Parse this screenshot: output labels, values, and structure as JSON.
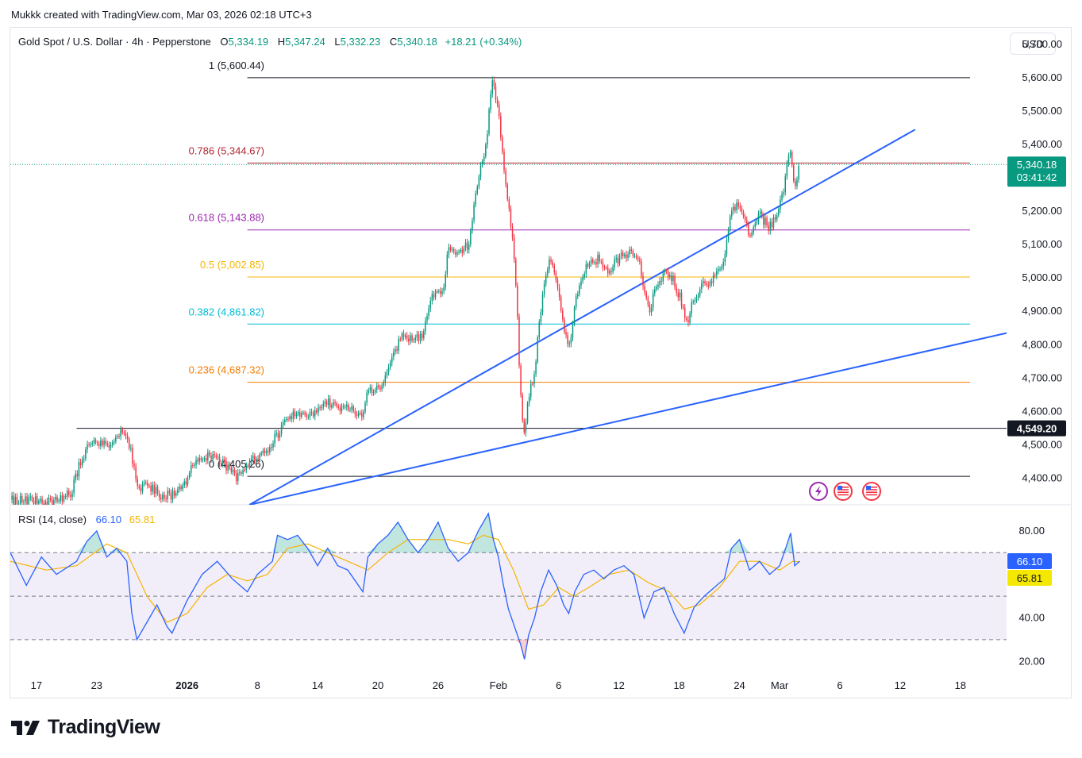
{
  "caption": "Mukkk created with TradingView.com, Mar 03, 2026 02:18 UTC+3",
  "header": {
    "symbol": "Gold Spot / U.S. Dollar · 4h · Pepperstone",
    "o_label": "O",
    "o": "5,334.19",
    "h_label": "H",
    "h": "5,347.24",
    "l_label": "L",
    "l": "5,332.23",
    "c_label": "C",
    "c": "5,340.18",
    "change": "+18.21 (+0.34%)"
  },
  "currency": "USD",
  "rsi_legend": {
    "name": "RSI (14, close)",
    "rsi": "66.10",
    "ma": "65.81"
  },
  "brand": "TradingView",
  "colors": {
    "up": "#089981",
    "down": "#f23645",
    "trend": "#2962ff",
    "rsi": "#2962ff",
    "rsi_ma": "#f5b400"
  },
  "chart_data": {
    "type": "candlestick",
    "title": "Gold Spot / U.S. Dollar · 4h · Pepperstone",
    "x_ticks": [
      {
        "label": "17",
        "day": -15
      },
      {
        "label": "23",
        "day": -9
      },
      {
        "label": "2026",
        "day": 0
      },
      {
        "label": "8",
        "day": 7
      },
      {
        "label": "14",
        "day": 13
      },
      {
        "label": "20",
        "day": 19
      },
      {
        "label": "26",
        "day": 25
      },
      {
        "label": "Feb",
        "day": 31
      },
      {
        "label": "6",
        "day": 37
      },
      {
        "label": "12",
        "day": 43
      },
      {
        "label": "18",
        "day": 49
      },
      {
        "label": "24",
        "day": 55
      },
      {
        "label": "Mar",
        "day": 59
      },
      {
        "label": "6",
        "day": 65
      },
      {
        "label": "12",
        "day": 71
      },
      {
        "label": "18",
        "day": 77
      }
    ],
    "y_range": [
      4320,
      5750
    ],
    "y_ticks": [
      "5,700.00",
      "5,600.00",
      "5,500.00",
      "5,400.00",
      "5,300.00",
      "5,200.00",
      "5,100.00",
      "5,000.00",
      "4,900.00",
      "4,800.00",
      "4,700.00",
      "4,600.00",
      "4,500.00",
      "4,400.00"
    ],
    "y_tick_values": [
      5700,
      5600,
      5500,
      5400,
      5300,
      5200,
      5100,
      5000,
      4900,
      4800,
      4700,
      4600,
      4500,
      4400
    ],
    "x_range_days": [
      -17.6,
      81.6
    ],
    "price_path": [
      {
        "d": -17.6,
        "p": 4335
      },
      {
        "d": -13,
        "p": 4330
      },
      {
        "d": -11.5,
        "p": 4360
      },
      {
        "d": -10.5,
        "p": 4460
      },
      {
        "d": -9.5,
        "p": 4510
      },
      {
        "d": -8,
        "p": 4495
      },
      {
        "d": -6.4,
        "p": 4540
      },
      {
        "d": -5.5,
        "p": 4470
      },
      {
        "d": -5,
        "p": 4365
      },
      {
        "d": -4,
        "p": 4385
      },
      {
        "d": -2.5,
        "p": 4345
      },
      {
        "d": -1.5,
        "p": 4350
      },
      {
        "d": -0.5,
        "p": 4370
      },
      {
        "d": 0.5,
        "p": 4430
      },
      {
        "d": 2,
        "p": 4470
      },
      {
        "d": 3.5,
        "p": 4450
      },
      {
        "d": 5,
        "p": 4400
      },
      {
        "d": 6.5,
        "p": 4450
      },
      {
        "d": 8,
        "p": 4490
      },
      {
        "d": 9,
        "p": 4530
      },
      {
        "d": 10,
        "p": 4580
      },
      {
        "d": 11,
        "p": 4600
      },
      {
        "d": 12.5,
        "p": 4585
      },
      {
        "d": 14,
        "p": 4625
      },
      {
        "d": 16,
        "p": 4605
      },
      {
        "d": 17.5,
        "p": 4595
      },
      {
        "d": 18,
        "p": 4660
      },
      {
        "d": 19.5,
        "p": 4675
      },
      {
        "d": 20.5,
        "p": 4760
      },
      {
        "d": 21.5,
        "p": 4840
      },
      {
        "d": 22.5,
        "p": 4810
      },
      {
        "d": 23.5,
        "p": 4830
      },
      {
        "d": 24.5,
        "p": 4950
      },
      {
        "d": 25.5,
        "p": 4970
      },
      {
        "d": 26,
        "p": 5080
      },
      {
        "d": 27,
        "p": 5080
      },
      {
        "d": 28,
        "p": 5100
      },
      {
        "d": 28.8,
        "p": 5260
      },
      {
        "d": 29.8,
        "p": 5410
      },
      {
        "d": 30.3,
        "p": 5590
      },
      {
        "d": 31,
        "p": 5520
      },
      {
        "d": 31.6,
        "p": 5300
      },
      {
        "d": 32.3,
        "p": 5150
      },
      {
        "d": 32.8,
        "p": 4950
      },
      {
        "d": 33.1,
        "p": 4720
      },
      {
        "d": 33.5,
        "p": 4520
      },
      {
        "d": 34,
        "p": 4650
      },
      {
        "d": 34.6,
        "p": 4700
      },
      {
        "d": 35,
        "p": 4860
      },
      {
        "d": 35.6,
        "p": 4980
      },
      {
        "d": 36.2,
        "p": 5060
      },
      {
        "d": 36.8,
        "p": 4980
      },
      {
        "d": 37.5,
        "p": 4850
      },
      {
        "d": 38,
        "p": 4780
      },
      {
        "d": 38.6,
        "p": 4920
      },
      {
        "d": 39.2,
        "p": 5000
      },
      {
        "d": 40,
        "p": 5040
      },
      {
        "d": 41,
        "p": 5060
      },
      {
        "d": 42,
        "p": 5020
      },
      {
        "d": 43,
        "p": 5060
      },
      {
        "d": 44,
        "p": 5080
      },
      {
        "d": 45,
        "p": 5050
      },
      {
        "d": 46,
        "p": 4900
      },
      {
        "d": 47,
        "p": 5000
      },
      {
        "d": 48,
        "p": 5020
      },
      {
        "d": 49,
        "p": 4950
      },
      {
        "d": 49.8,
        "p": 4870
      },
      {
        "d": 50.5,
        "p": 4940
      },
      {
        "d": 51.5,
        "p": 4980
      },
      {
        "d": 52.5,
        "p": 5000
      },
      {
        "d": 53.5,
        "p": 5040
      },
      {
        "d": 54,
        "p": 5180
      },
      {
        "d": 55,
        "p": 5230
      },
      {
        "d": 56,
        "p": 5120
      },
      {
        "d": 57,
        "p": 5190
      },
      {
        "d": 58,
        "p": 5150
      },
      {
        "d": 59,
        "p": 5210
      },
      {
        "d": 59.6,
        "p": 5300
      },
      {
        "d": 60,
        "p": 5400
      },
      {
        "d": 60.4,
        "p": 5290
      },
      {
        "d": 60.6,
        "p": 5285
      },
      {
        "d": 61,
        "p": 5340
      }
    ],
    "last_candle_day": 61,
    "fib_levels": [
      {
        "ratio": "1",
        "price": 5600.44,
        "label": "1 (5,600.44)",
        "color": "#131722"
      },
      {
        "ratio": "0.786",
        "price": 5344.67,
        "label": "0.786 (5,344.67)",
        "color": "#b22833"
      },
      {
        "ratio": "0.618",
        "price": 5143.88,
        "label": "0.618 (5,143.88)",
        "color": "#9c27b0"
      },
      {
        "ratio": "0.5",
        "price": 5002.85,
        "label": "0.5 (5,002.85)",
        "color": "#f5b400"
      },
      {
        "ratio": "0.382",
        "price": 4861.82,
        "label": "0.382 (4,861.82)",
        "color": "#00bcd4"
      },
      {
        "ratio": "0.236",
        "price": 4687.32,
        "label": "0.236 (4,687.32)",
        "color": "#f57c00"
      },
      {
        "ratio": "0",
        "price": 4405.26,
        "label": "0 (4,405.26)",
        "color": "#131722"
      }
    ],
    "fib_start_day": 6,
    "horizontal_line": {
      "price": 4549.2,
      "label": "4,549.20",
      "start_day": -11
    },
    "trendlines": [
      {
        "from": {
          "day": 6.2,
          "price": 4320
        },
        "to": {
          "day": 72.5,
          "price": 5445
        }
      },
      {
        "from": {
          "day": 6.2,
          "price": 4320
        },
        "to": {
          "day": 81.6,
          "price": 4835
        }
      }
    ],
    "last_price": {
      "value": "5,340.18",
      "countdown": "03:41:42",
      "price": 5340.18
    },
    "rsi": {
      "name": "RSI (14, close)",
      "value": 66.1,
      "ma_value": 65.81,
      "value_label": "66.10",
      "ma_label": "65.81",
      "y_range": [
        15,
        92
      ],
      "y_ticks": [
        "80.00",
        "40.00",
        "20.00"
      ],
      "y_tick_values": [
        80,
        40,
        20
      ],
      "band": [
        30,
        70
      ],
      "mid": 50,
      "path": [
        {
          "d": -17.6,
          "v": 70
        },
        {
          "d": -16,
          "v": 55
        },
        {
          "d": -14.5,
          "v": 68
        },
        {
          "d": -13,
          "v": 60
        },
        {
          "d": -11,
          "v": 66
        },
        {
          "d": -10,
          "v": 75
        },
        {
          "d": -9,
          "v": 80
        },
        {
          "d": -8,
          "v": 68
        },
        {
          "d": -7,
          "v": 72
        },
        {
          "d": -6,
          "v": 66
        },
        {
          "d": -5.5,
          "v": 42
        },
        {
          "d": -5,
          "v": 30
        },
        {
          "d": -4,
          "v": 38
        },
        {
          "d": -3,
          "v": 46
        },
        {
          "d": -2,
          "v": 36
        },
        {
          "d": -1.5,
          "v": 33
        },
        {
          "d": 0,
          "v": 48
        },
        {
          "d": 1.5,
          "v": 60
        },
        {
          "d": 3,
          "v": 66
        },
        {
          "d": 4.5,
          "v": 58
        },
        {
          "d": 6,
          "v": 52
        },
        {
          "d": 7,
          "v": 60
        },
        {
          "d": 8.5,
          "v": 66
        },
        {
          "d": 9,
          "v": 78
        },
        {
          "d": 10,
          "v": 76
        },
        {
          "d": 11,
          "v": 78
        },
        {
          "d": 12,
          "v": 72
        },
        {
          "d": 13,
          "v": 64
        },
        {
          "d": 14,
          "v": 72
        },
        {
          "d": 15,
          "v": 64
        },
        {
          "d": 16,
          "v": 62
        },
        {
          "d": 17.5,
          "v": 52
        },
        {
          "d": 18,
          "v": 68
        },
        {
          "d": 19,
          "v": 74
        },
        {
          "d": 20,
          "v": 78
        },
        {
          "d": 21,
          "v": 84
        },
        {
          "d": 22,
          "v": 76
        },
        {
          "d": 23,
          "v": 70
        },
        {
          "d": 24,
          "v": 76
        },
        {
          "d": 25,
          "v": 84
        },
        {
          "d": 26,
          "v": 72
        },
        {
          "d": 27,
          "v": 66
        },
        {
          "d": 28,
          "v": 70
        },
        {
          "d": 29,
          "v": 80
        },
        {
          "d": 30,
          "v": 88
        },
        {
          "d": 30.5,
          "v": 76
        },
        {
          "d": 31,
          "v": 68
        },
        {
          "d": 31.5,
          "v": 55
        },
        {
          "d": 32,
          "v": 44
        },
        {
          "d": 32.6,
          "v": 36
        },
        {
          "d": 33.2,
          "v": 28
        },
        {
          "d": 33.6,
          "v": 21
        },
        {
          "d": 34,
          "v": 32
        },
        {
          "d": 34.6,
          "v": 40
        },
        {
          "d": 35.2,
          "v": 52
        },
        {
          "d": 36,
          "v": 62
        },
        {
          "d": 36.8,
          "v": 55
        },
        {
          "d": 37.5,
          "v": 46
        },
        {
          "d": 38,
          "v": 42
        },
        {
          "d": 38.6,
          "v": 52
        },
        {
          "d": 39.5,
          "v": 60
        },
        {
          "d": 40.5,
          "v": 62
        },
        {
          "d": 41.5,
          "v": 58
        },
        {
          "d": 42.5,
          "v": 62
        },
        {
          "d": 43.5,
          "v": 64
        },
        {
          "d": 44.5,
          "v": 60
        },
        {
          "d": 45.5,
          "v": 40
        },
        {
          "d": 46.5,
          "v": 52
        },
        {
          "d": 47.5,
          "v": 54
        },
        {
          "d": 48.5,
          "v": 42
        },
        {
          "d": 49.5,
          "v": 33
        },
        {
          "d": 50.5,
          "v": 45
        },
        {
          "d": 51.5,
          "v": 50
        },
        {
          "d": 52.5,
          "v": 54
        },
        {
          "d": 53.5,
          "v": 58
        },
        {
          "d": 54.2,
          "v": 72
        },
        {
          "d": 55,
          "v": 76
        },
        {
          "d": 56,
          "v": 62
        },
        {
          "d": 57,
          "v": 66
        },
        {
          "d": 58,
          "v": 60
        },
        {
          "d": 59,
          "v": 64
        },
        {
          "d": 59.6,
          "v": 72
        },
        {
          "d": 60.1,
          "v": 79
        },
        {
          "d": 60.5,
          "v": 64
        },
        {
          "d": 61,
          "v": 66.1
        }
      ],
      "ma_path": [
        {
          "d": -17.6,
          "v": 66
        },
        {
          "d": -14,
          "v": 62
        },
        {
          "d": -11,
          "v": 64
        },
        {
          "d": -8,
          "v": 74
        },
        {
          "d": -6,
          "v": 70
        },
        {
          "d": -4,
          "v": 50
        },
        {
          "d": -2,
          "v": 38
        },
        {
          "d": 0,
          "v": 42
        },
        {
          "d": 2,
          "v": 54
        },
        {
          "d": 4,
          "v": 60
        },
        {
          "d": 6,
          "v": 57
        },
        {
          "d": 8,
          "v": 60
        },
        {
          "d": 10,
          "v": 72
        },
        {
          "d": 12,
          "v": 74
        },
        {
          "d": 14,
          "v": 70
        },
        {
          "d": 16,
          "v": 66
        },
        {
          "d": 18,
          "v": 62
        },
        {
          "d": 20,
          "v": 70
        },
        {
          "d": 22,
          "v": 76
        },
        {
          "d": 24,
          "v": 76
        },
        {
          "d": 26,
          "v": 76
        },
        {
          "d": 28,
          "v": 74
        },
        {
          "d": 29.5,
          "v": 78
        },
        {
          "d": 31,
          "v": 76
        },
        {
          "d": 32.5,
          "v": 62
        },
        {
          "d": 34,
          "v": 44
        },
        {
          "d": 35.5,
          "v": 46
        },
        {
          "d": 37,
          "v": 54
        },
        {
          "d": 38.5,
          "v": 50
        },
        {
          "d": 40,
          "v": 54
        },
        {
          "d": 42,
          "v": 60
        },
        {
          "d": 44,
          "v": 62
        },
        {
          "d": 46,
          "v": 56
        },
        {
          "d": 48,
          "v": 52
        },
        {
          "d": 49.5,
          "v": 44
        },
        {
          "d": 51,
          "v": 46
        },
        {
          "d": 53,
          "v": 54
        },
        {
          "d": 55,
          "v": 66
        },
        {
          "d": 57,
          "v": 66
        },
        {
          "d": 59,
          "v": 62
        },
        {
          "d": 60.3,
          "v": 66
        },
        {
          "d": 61,
          "v": 65.81
        }
      ]
    }
  }
}
